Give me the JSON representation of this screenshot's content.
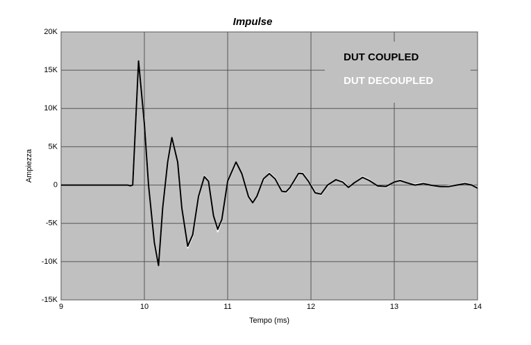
{
  "chart_data": {
    "type": "line",
    "title": "Impulse",
    "x_label": "Tempo (ms)",
    "y_label": "Ampiezza",
    "x": [
      9.0,
      9.8,
      9.83,
      9.86,
      9.93,
      10.0,
      10.05,
      10.12,
      10.17,
      10.22,
      10.28,
      10.33,
      10.4,
      10.45,
      10.52,
      10.58,
      10.65,
      10.72,
      10.77,
      10.83,
      10.88,
      10.93,
      11.0,
      11.1,
      11.17,
      11.25,
      11.3,
      11.35,
      11.43,
      11.5,
      11.57,
      11.65,
      11.7,
      11.75,
      11.85,
      11.9,
      11.97,
      12.05,
      12.12,
      12.2,
      12.3,
      12.38,
      12.45,
      12.52,
      12.62,
      12.7,
      12.8,
      12.9,
      13.0,
      13.07,
      13.15,
      13.25,
      13.35,
      13.45,
      13.55,
      13.65,
      13.75,
      13.85,
      13.93,
      14.0
    ],
    "series": [
      {
        "name": "DUT DECOUPLED",
        "color": "#ffffff",
        "values": [
          0,
          0,
          -100,
          0,
          16000,
          8200,
          0,
          -7300,
          -10300,
          -3200,
          2800,
          6100,
          3100,
          -2800,
          -8200,
          -6700,
          -1700,
          1200,
          600,
          -3900,
          -6100,
          -4600,
          400,
          2900,
          1600,
          -1400,
          -2200,
          -1600,
          700,
          1600,
          900,
          -700,
          -1000,
          -400,
          1400,
          1600,
          600,
          -900,
          -1300,
          -100,
          700,
          500,
          -200,
          300,
          1100,
          700,
          -100,
          -300,
          400,
          700,
          300,
          100,
          300,
          -100,
          -200,
          -100,
          0,
          300,
          0,
          -300
        ]
      },
      {
        "name": "DUT COUPLED",
        "color": "#000000",
        "values": [
          0,
          0,
          -100,
          0,
          16200,
          8000,
          0,
          -7500,
          -10500,
          -3000,
          3000,
          6200,
          3000,
          -3000,
          -8000,
          -6500,
          -1500,
          1100,
          500,
          -4000,
          -5800,
          -4500,
          500,
          3000,
          1500,
          -1500,
          -2300,
          -1500,
          800,
          1500,
          800,
          -800,
          -900,
          -300,
          1500,
          1500,
          500,
          -1000,
          -1200,
          0,
          700,
          400,
          -300,
          300,
          1000,
          600,
          -100,
          -200,
          400,
          600,
          300,
          0,
          200,
          -50,
          -200,
          -200,
          0,
          200,
          0,
          -400
        ]
      }
    ],
    "xlim": [
      9,
      14
    ],
    "ylim": [
      -15000,
      20000
    ],
    "xticks": [
      9,
      10,
      11,
      12,
      13,
      14
    ],
    "yticks": [
      {
        "value": -15000,
        "label": "-15K"
      },
      {
        "value": -10000,
        "label": "-10K"
      },
      {
        "value": -5000,
        "label": "-5K"
      },
      {
        "value": 0,
        "label": "0"
      },
      {
        "value": 5000,
        "label": "5K"
      },
      {
        "value": 10000,
        "label": "10K"
      },
      {
        "value": 15000,
        "label": "15K"
      },
      {
        "value": 20000,
        "label": "20K"
      }
    ],
    "grid": true,
    "legend": "upper right"
  }
}
